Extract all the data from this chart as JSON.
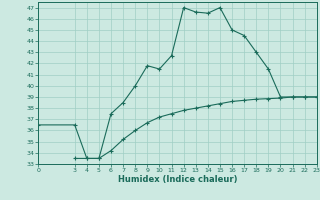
{
  "xlabel": "Humidex (Indice chaleur)",
  "bg_color": "#cce9e1",
  "line_color": "#1a6b5a",
  "grid_color": "#a0cfc5",
  "xlim": [
    0,
    23
  ],
  "ylim": [
    33,
    47.5
  ],
  "yticks": [
    33,
    34,
    35,
    36,
    37,
    38,
    39,
    40,
    41,
    42,
    43,
    44,
    45,
    46,
    47
  ],
  "xticks": [
    0,
    3,
    4,
    5,
    6,
    7,
    8,
    9,
    10,
    11,
    12,
    13,
    14,
    15,
    16,
    17,
    18,
    19,
    20,
    21,
    22,
    23
  ],
  "humidex_x": [
    3,
    4,
    5,
    6,
    7,
    8,
    9,
    10,
    11,
    12,
    13,
    14,
    15,
    16,
    17,
    18,
    19,
    20,
    21,
    22,
    23
  ],
  "humidex_y": [
    33.5,
    33.5,
    33.5,
    37.5,
    38.5,
    40.0,
    41.8,
    41.5,
    42.7,
    47.0,
    46.6,
    46.5,
    47.0,
    45.0,
    44.5,
    43.0,
    41.5,
    39.0,
    39.0,
    39.0,
    39.0
  ],
  "linear_x": [
    0,
    3,
    4,
    5,
    6,
    7,
    8,
    9,
    10,
    11,
    12,
    13,
    14,
    15,
    16,
    17,
    18,
    19,
    20,
    21,
    22,
    23
  ],
  "linear_y": [
    36.5,
    36.5,
    33.5,
    33.5,
    34.2,
    35.2,
    36.0,
    36.7,
    37.2,
    37.5,
    37.8,
    38.0,
    38.2,
    38.4,
    38.6,
    38.7,
    38.8,
    38.85,
    38.9,
    39.0,
    39.0,
    39.0
  ]
}
